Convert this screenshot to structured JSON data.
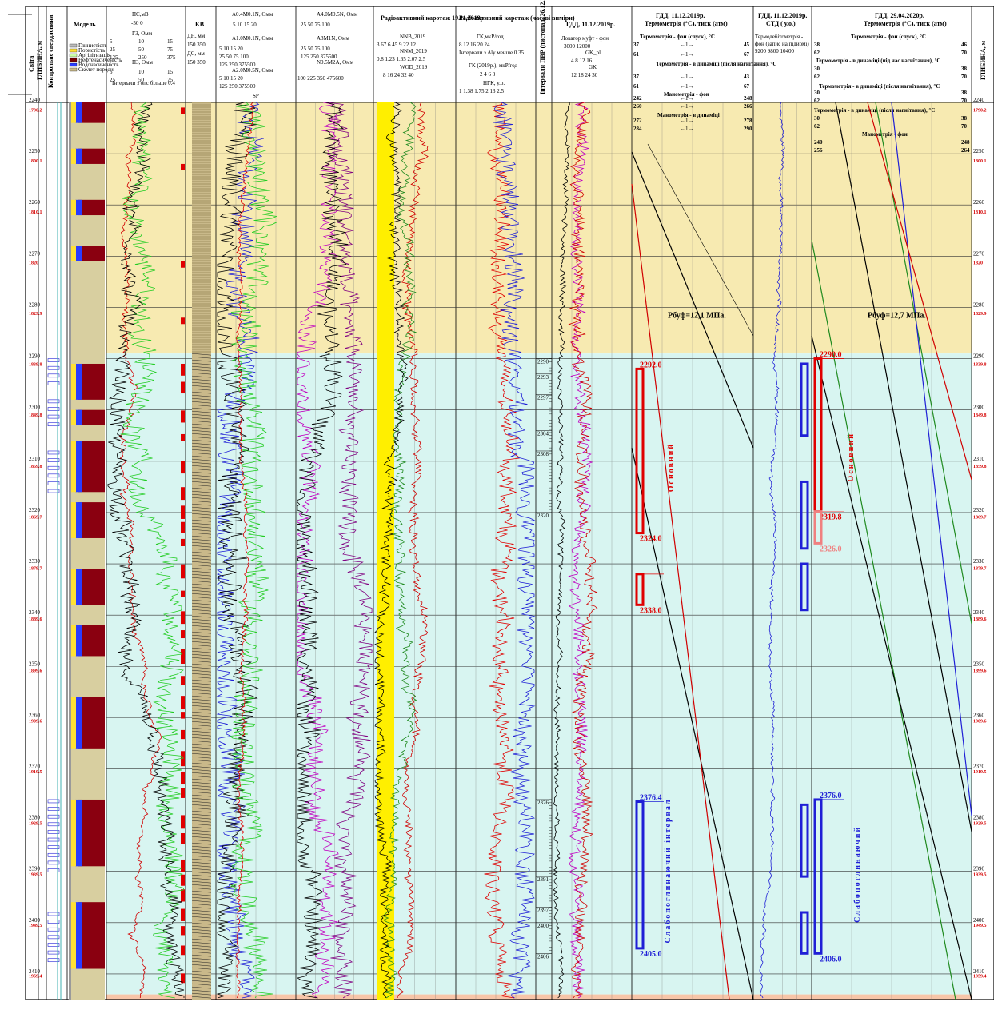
{
  "chart_data": {
    "type": "line",
    "depth_axis": {
      "label": "ГЛИБИНА, м",
      "range": [
        2240,
        2415
      ],
      "ticks": [
        2240,
        2250,
        2260,
        2270,
        2280,
        2290,
        2300,
        2310,
        2320,
        2330,
        2340,
        2350,
        2360,
        2370,
        2380,
        2390,
        2400,
        2410
      ]
    },
    "abs_depth_ticks": [
      {
        "d": 2240.7,
        "label": "1790.2"
      },
      {
        "d": 2250.6,
        "label": "1800.1"
      },
      {
        "d": 2260.6,
        "label": "1810.1"
      },
      {
        "d": 2270.5,
        "label": "1820"
      },
      {
        "d": 2280.4,
        "label": "1829.9"
      },
      {
        "d": 2290.3,
        "label": "1839.8"
      },
      {
        "d": 2300.2,
        "label": "1849.8"
      },
      {
        "d": 2310.2,
        "label": "1859.8"
      },
      {
        "d": 2320.1,
        "label": "1869.7"
      },
      {
        "d": 2330.1,
        "label": "1879.7"
      },
      {
        "d": 2340.0,
        "label": "1889.6"
      },
      {
        "d": 2350.0,
        "label": "1899.6"
      },
      {
        "d": 2359.9,
        "label": "1909.6"
      },
      {
        "d": 2369.8,
        "label": "1919.5"
      },
      {
        "d": 2379.8,
        "label": "1929.5"
      },
      {
        "d": 2389.8,
        "label": "1939.5"
      },
      {
        "d": 2399.7,
        "label": "1949.5"
      },
      {
        "d": 2409.6,
        "label": "1959.4"
      }
    ],
    "headers": {
      "svita": "Світа",
      "depth": "ГЛИБИНА, м",
      "drilling": "Контрольне свердловини",
      "model": "Модель",
      "model_legend": [
        "Глинистість",
        "Пористість",
        "Аргілітизація",
        "Нефтенасиченість",
        "Водонасиченість",
        "Скелет породи"
      ],
      "ps": "ПС,мВ",
      "ps_sub": "-50 0",
      "gz": "ГЗ, Омм",
      "pz": "ПЗ, Омм",
      "ps_note": "Інтервали з опс більше 0.4",
      "gz_ticks": [
        "5",
        "10",
        "15",
        "25",
        "50",
        "75",
        "125",
        "250",
        "375"
      ],
      "pz_ticks": [
        "5",
        "10",
        "15",
        "25",
        "50",
        "75"
      ],
      "kv": "КВ",
      "dn": "ДН, мм",
      "ds": "ДС, мм",
      "dn_ticks": [
        "150",
        "350"
      ],
      "ds_ticks": [
        "150",
        "350"
      ],
      "res_a": [
        "A0.4M0.1N, Омм",
        "A1.0M0.1N, Омм",
        "A2.0M0.5N, Омм"
      ],
      "res_ticks": [
        "5",
        "10",
        "15",
        "20",
        "25",
        "50",
        "75",
        "100",
        "125",
        "250",
        "375",
        "500"
      ],
      "sp": "SP",
      "res_b": [
        "A4.0M0.5N, Омм",
        "A8M1N, Омм",
        "N0.5M2A, Омм"
      ],
      "res_b_ticks": [
        "25",
        "50",
        "75",
        "100",
        "125",
        "250",
        "375",
        "500",
        "225",
        "350",
        "475",
        "600"
      ],
      "radio1": "Радіоактивний каротаж 19.11.2019р.",
      "nnb": "NNB_2019",
      "nnm": "NNM_2019",
      "wod": "WOD_2019",
      "nnb_ticks": [
        "3.67",
        "6.45",
        "9.22",
        "12"
      ],
      "nnm_ticks": [
        "0.8",
        "1.23",
        "1.65",
        "2.07",
        "2.5"
      ],
      "wod_ticks": [
        "8",
        "16",
        "24",
        "32",
        "40"
      ],
      "radio2": "Радіоактивний каротаж (часові виміри)",
      "gk": "ГК,мкР/год",
      "gk_ticks": [
        "8",
        "12",
        "16",
        "20",
        "24"
      ],
      "radio2_note": "Інтервали з Δly менше 0.35",
      "gk2019": "ГК (2019р.), мкР/год",
      "gk2019_ticks": [
        "2",
        "4",
        "6",
        "8"
      ],
      "ngk": "НГК, у.о.",
      "ngk_ticks": [
        "1",
        "1.38",
        "1.75",
        "2.13",
        "2.5"
      ],
      "pvr": "Інтервали ПВР (листопад, 26.12.2019р.)",
      "gdd1": "ГДД, 11.12.2019р.",
      "lm": "Локатор муфт - фон",
      "lm_ticks": [
        "3000",
        "12000"
      ],
      "gkpl": "GK_pl",
      "gkpl_ticks": [
        "4",
        "8",
        "12",
        "16"
      ],
      "gk_short": "GK",
      "gk_short_ticks": [
        "12",
        "18",
        "24",
        "30"
      ],
      "gdd2": "ГДД, 11.12.2019р. Термометрія (°С), тиск (атм)",
      "t_fon": "Термометрія - фон (спуск), °С",
      "t_dyn": "Термометрія - в динаміці (після нагнітання), °С",
      "m_fon": "Манометрія - фон",
      "m_dyn": "Манометрія - в динаміці",
      "t_ticks": [
        "37",
        "45",
        "61",
        "67",
        "37",
        "43",
        "61",
        "67",
        "242",
        "248",
        "260",
        "266",
        "272",
        "278",
        "284",
        "290"
      ],
      "std": "ГДД, 11.12.2019р. СТД ( у.о.)",
      "std_sub": "Термодебітометрія - фон (запис на підйомі)",
      "std_ticks": [
        "9200",
        "9800",
        "10400"
      ],
      "gdd3": "ГДД, 29.04.2020р. Термометрія (°С), тиск (атм)",
      "t3_fon": "Термометрія - фон (спуск), °С",
      "t3_dyn": "Термометрія - в динаміці (під час нагнітання), °С",
      "t3_dyn2": "Термометрія - в динаміці (після нагнітання), °С",
      "t3_dyn3": "Термометрія - в динаміці (після нагнітання), °С",
      "m3_fon": "Манометрія - фон",
      "t3_ticks": [
        "38",
        "46",
        "62",
        "70",
        "30",
        "38",
        "62",
        "70",
        "30",
        "38",
        "62",
        "70",
        "30",
        "38",
        "62",
        "70",
        "240",
        "248",
        "256",
        "264"
      ],
      "arrow_glyph": "←1→"
    },
    "zones": [
      {
        "top": 2240,
        "bottom": 2289,
        "color": "#f7eab1"
      },
      {
        "top": 2289,
        "bottom": 2414,
        "color": "#d8f5f1"
      },
      {
        "top": 2414,
        "bottom": 2420,
        "color": "#f7c5a8"
      }
    ],
    "pvr_intervals": [
      {
        "top": 2290,
        "bottom": 2293,
        "label": "2290"
      },
      {
        "top": 2293,
        "bottom": 2297,
        "label": "2293"
      },
      {
        "top": 2297,
        "bottom": 2304,
        "label": "2297"
      },
      {
        "top": 2304,
        "bottom": 2308,
        "label": "2304"
      },
      {
        "top": 2308,
        "bottom": 2320,
        "label": "2308"
      },
      {
        "top": 2320,
        "bottom": 2376,
        "label": "2320"
      },
      {
        "top": 2376,
        "bottom": 2391,
        "label": "2376"
      },
      {
        "top": 2391,
        "bottom": 2397,
        "label": "2391"
      },
      {
        "top": 2397,
        "bottom": 2400,
        "label": "2397"
      },
      {
        "top": 2400,
        "bottom": 2406,
        "label": "2400"
      },
      {
        "top": 2406,
        "bottom": 2413,
        "label": "2406"
      }
    ],
    "gdd2_intervals": [
      {
        "top": 2292.0,
        "bottom": 2324.0,
        "color": "#e00000",
        "top_label": "2292.0",
        "bottom_label": "2324.0"
      },
      {
        "top": 2332,
        "bottom": 2338.0,
        "color": "#e00000",
        "top_label": "",
        "bottom_label": "2338.0"
      },
      {
        "top": 2376.4,
        "bottom": 2405.0,
        "color": "#1f1fd6",
        "top_label": "2376.4",
        "bottom_label": "2405.0"
      }
    ],
    "gdd3_intervals": [
      {
        "top": 2290.0,
        "bottom": 2319.8,
        "color": "#e00000",
        "top_label": "2290.0",
        "bottom_label": "2319.8"
      },
      {
        "top": 2319.8,
        "bottom": 2326.0,
        "color": "#f08080",
        "top_label": "",
        "bottom_label": "2326.0"
      },
      {
        "top": 2376.0,
        "bottom": 2406.0,
        "color": "#1f1fd6",
        "top_label": "2376.0",
        "bottom_label": "2406.0"
      }
    ],
    "std_intervals": [
      {
        "top": 2291,
        "bottom": 2305
      },
      {
        "top": 2314,
        "bottom": 2327
      },
      {
        "top": 2330,
        "bottom": 2339
      },
      {
        "top": 2377,
        "bottom": 2391
      },
      {
        "top": 2398,
        "bottom": 2406
      }
    ],
    "annotations": [
      {
        "text": "Рбуф=12,1 МПа.",
        "depth": 2282
      },
      {
        "text": "Рбуф=12,7 МПа.",
        "depth": 2282
      },
      {
        "text": "Основний",
        "col": "gdd2"
      },
      {
        "text": "Основний",
        "col": "gdd3"
      },
      {
        "text": "Слабопоглинаючий інтервал",
        "col": "gdd2"
      },
      {
        "text": "Слабопоглинаючий",
        "col": "gdd3"
      }
    ]
  }
}
